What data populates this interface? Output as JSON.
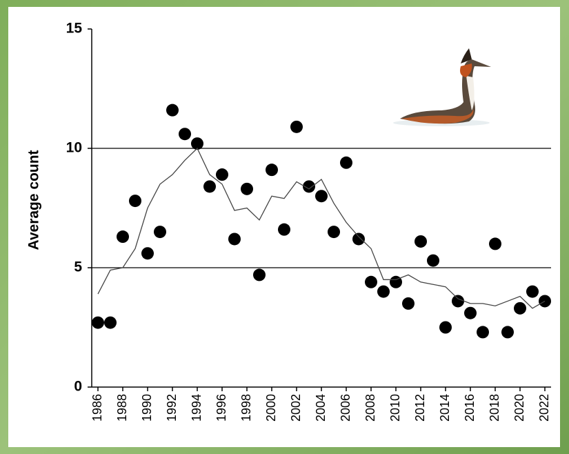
{
  "chart_data": {
    "type": "scatter",
    "ylabel": "Average count",
    "x": [
      1986,
      1987,
      1988,
      1989,
      1990,
      1991,
      1992,
      1993,
      1994,
      1995,
      1996,
      1997,
      1998,
      1999,
      2000,
      2001,
      2002,
      2003,
      2004,
      2005,
      2006,
      2007,
      2008,
      2009,
      2010,
      2011,
      2012,
      2013,
      2014,
      2015,
      2016,
      2017,
      2018,
      2019,
      2020,
      2021,
      2022
    ],
    "series": [
      {
        "type": "scatter",
        "color": "#000000",
        "values": [
          2.7,
          2.7,
          6.3,
          7.8,
          5.6,
          6.5,
          11.6,
          10.6,
          10.2,
          8.4,
          8.9,
          6.2,
          8.3,
          4.7,
          9.1,
          6.6,
          10.9,
          8.4,
          8.0,
          6.5,
          9.4,
          6.2,
          4.4,
          4.0,
          4.4,
          3.5,
          6.1,
          5.3,
          2.5,
          3.6,
          3.1,
          2.3,
          6.0,
          2.3,
          3.3,
          4.0,
          3.6
        ]
      },
      {
        "type": "line",
        "color": "#444444",
        "values": [
          3.9,
          4.9,
          5.0,
          5.8,
          7.5,
          8.5,
          8.9,
          9.5,
          10.0,
          8.9,
          8.5,
          7.4,
          7.5,
          7.0,
          8.0,
          7.9,
          8.6,
          8.3,
          8.7,
          7.7,
          6.9,
          6.3,
          5.8,
          4.5,
          4.5,
          4.7,
          4.4,
          4.3,
          4.2,
          3.7,
          3.5,
          3.5,
          3.4,
          3.6,
          3.8,
          3.3,
          3.6
        ]
      }
    ],
    "xlim": [
      1985.5,
      2022.5
    ],
    "xticks": [
      1986,
      1988,
      1990,
      1992,
      1994,
      1996,
      1998,
      2000,
      2002,
      2004,
      2006,
      2008,
      2010,
      2012,
      2014,
      2016,
      2018,
      2020,
      2022
    ],
    "ylim": [
      0,
      15
    ],
    "yticks": [
      0,
      5,
      10,
      15
    ],
    "grid": true
  }
}
